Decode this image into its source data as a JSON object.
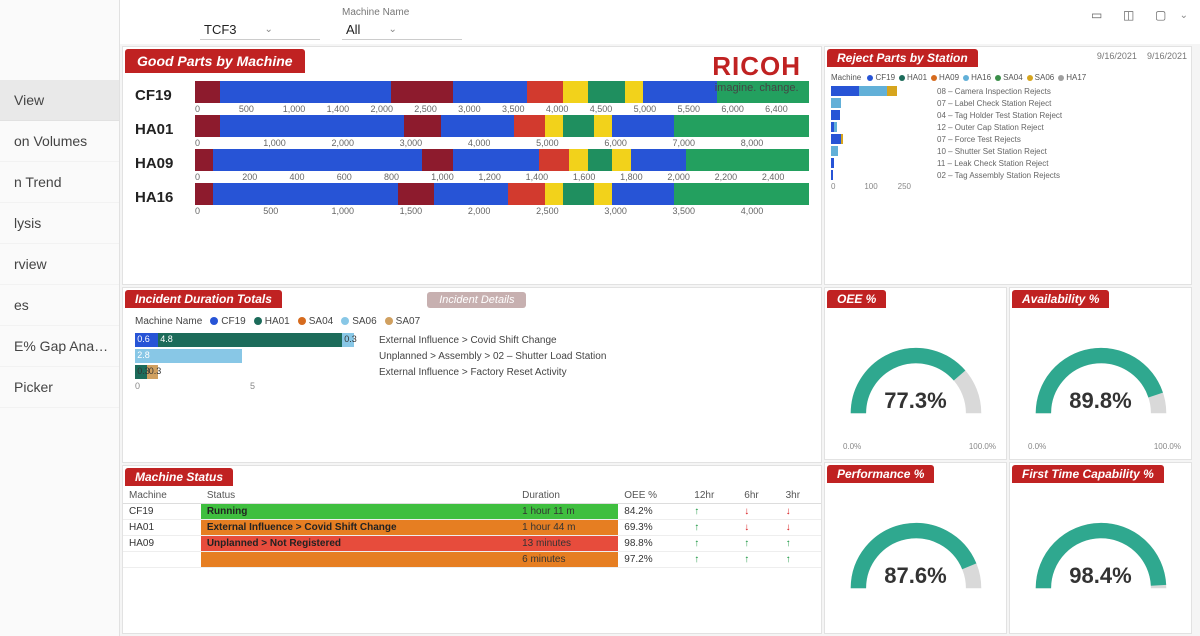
{
  "sidebar": {
    "items": [
      {
        "label": "View",
        "active": true
      },
      {
        "label": "on Volumes"
      },
      {
        "label": "n Trend"
      },
      {
        "label": "lysis"
      },
      {
        "label": "rview"
      },
      {
        "label": "es"
      },
      {
        "label": "E% Gap Analy…"
      },
      {
        "label": "Picker"
      }
    ]
  },
  "filters": {
    "left_label": "",
    "left_value": "TCF3",
    "right_label": "Machine Name",
    "right_value": "All"
  },
  "brand": {
    "name": "RICOH",
    "tagline": "imagine. change.",
    "color": "#c02222"
  },
  "dates": {
    "from": "9/16/2021",
    "to": "9/16/2021"
  },
  "good_parts": {
    "title": "Good Parts by Machine",
    "palette": {
      "a": "#8d1b2d",
      "b": "#2754d6",
      "c": "#d23a2e",
      "d": "#f2d21b",
      "e": "#1f8f5f",
      "f": "#23a05f"
    },
    "machines": [
      {
        "name": "CF19",
        "max": 6400,
        "ticks": [
          "0",
          "500",
          "1,000",
          "1,400",
          "2,000",
          "2,500",
          "3,000",
          "3,500",
          "4,000",
          "4,500",
          "5,000",
          "5,500",
          "6,000",
          "6,400"
        ],
        "segs": [
          [
            "a",
            4
          ],
          [
            "b",
            28
          ],
          [
            "a",
            10
          ],
          [
            "b",
            12
          ],
          [
            "c",
            6
          ],
          [
            "d",
            4
          ],
          [
            "e",
            6
          ],
          [
            "d",
            3
          ],
          [
            "b",
            12
          ],
          [
            "f",
            15
          ]
        ]
      },
      {
        "name": "HA01",
        "max": 8000,
        "ticks": [
          "0",
          "1,000",
          "2,000",
          "3,000",
          "4,000",
          "5,000",
          "6,000",
          "7,000",
          "8,000"
        ],
        "segs": [
          [
            "a",
            4
          ],
          [
            "b",
            30
          ],
          [
            "a",
            6
          ],
          [
            "b",
            12
          ],
          [
            "c",
            5
          ],
          [
            "d",
            3
          ],
          [
            "e",
            5
          ],
          [
            "d",
            3
          ],
          [
            "b",
            10
          ],
          [
            "f",
            22
          ]
        ]
      },
      {
        "name": "HA09",
        "max": 2400,
        "ticks": [
          "0",
          "200",
          "400",
          "600",
          "800",
          "1,000",
          "1,200",
          "1,400",
          "1,600",
          "1,800",
          "2,000",
          "2,200",
          "2,400"
        ],
        "segs": [
          [
            "a",
            3
          ],
          [
            "b",
            34
          ],
          [
            "a",
            5
          ],
          [
            "b",
            14
          ],
          [
            "c",
            5
          ],
          [
            "d",
            3
          ],
          [
            "e",
            4
          ],
          [
            "d",
            3
          ],
          [
            "b",
            9
          ],
          [
            "f",
            20
          ]
        ]
      },
      {
        "name": "HA16",
        "max": 4000,
        "ticks": [
          "0",
          "500",
          "1,000",
          "1,500",
          "2,000",
          "2,500",
          "3,000",
          "3,500",
          "4,000"
        ],
        "segs": [
          [
            "a",
            3
          ],
          [
            "b",
            30
          ],
          [
            "a",
            6
          ],
          [
            "b",
            12
          ],
          [
            "c",
            6
          ],
          [
            "d",
            3
          ],
          [
            "e",
            5
          ],
          [
            "d",
            3
          ],
          [
            "b",
            10
          ],
          [
            "f",
            22
          ]
        ]
      }
    ]
  },
  "reject": {
    "title": "Reject Parts by Station",
    "legend_label": "Machine",
    "legend": [
      {
        "name": "CF19",
        "color": "#2754d6"
      },
      {
        "name": "HA01",
        "color": "#1c6b5a"
      },
      {
        "name": "HA09",
        "color": "#d66b1e"
      },
      {
        "name": "HA16",
        "color": "#62b0d8"
      },
      {
        "name": "SA04",
        "color": "#3b8f4a"
      },
      {
        "name": "SA06",
        "color": "#d6a51e"
      },
      {
        "name": "HA17",
        "color": "#a0a0a0"
      }
    ],
    "rows": [
      {
        "label": "08 – Camera Inspection Rejects",
        "segs": [
          [
            "#2754d6",
            70
          ],
          [
            "#62b0d8",
            70
          ],
          [
            "#d6a51e",
            25
          ]
        ]
      },
      {
        "label": "07 – Label Check Station Reject",
        "segs": [
          [
            "#62b0d8",
            26
          ]
        ]
      },
      {
        "label": "04 – Tag Holder Test Station Reject",
        "segs": [
          [
            "#2754d6",
            22
          ]
        ]
      },
      {
        "label": "12 – Outer Cap Station Reject",
        "segs": [
          [
            "#2754d6",
            8
          ],
          [
            "#62b0d8",
            7
          ]
        ]
      },
      {
        "label": "07 – Force Test Rejects",
        "segs": [
          [
            "#2754d6",
            24
          ],
          [
            "#d6a51e",
            7
          ]
        ]
      },
      {
        "label": "10 – Shutter Set Station Reject",
        "segs": [
          [
            "#62b0d8",
            18
          ]
        ]
      },
      {
        "label": "11 – Leak Check Station Reject",
        "segs": [
          [
            "#2754d6",
            8
          ]
        ]
      },
      {
        "label": "02 – Tag Assembly Station Rejects",
        "segs": [
          [
            "#2754d6",
            6
          ]
        ]
      }
    ],
    "axis_max": 250,
    "axis_ticks": [
      "0",
      "100",
      "250"
    ]
  },
  "incident": {
    "title": "Incident Duration Totals",
    "title2": "Incident Details",
    "legend_label": "Machine Name",
    "legend": [
      {
        "name": "CF19",
        "color": "#2754d6"
      },
      {
        "name": "HA01",
        "color": "#1c6b5a"
      },
      {
        "name": "SA04",
        "color": "#d66b1e"
      },
      {
        "name": "SA06",
        "color": "#88c7e6"
      },
      {
        "name": "SA07",
        "color": "#d0a060"
      }
    ],
    "rows": [
      {
        "label": "External Influence > Covid Shift Change",
        "segs": [
          {
            "c": "#2754d6",
            "v": 0.6
          },
          {
            "c": "#1c6b5a",
            "v": 4.8
          },
          {
            "c": "#88c7e6",
            "v": 0.3
          }
        ]
      },
      {
        "label": "Unplanned > Assembly > 02 – Shutter Load Station",
        "segs": [
          {
            "c": "#88c7e6",
            "v": 2.8
          }
        ]
      },
      {
        "label": "External Influence > Factory Reset Activity",
        "segs": [
          {
            "c": "#1c6b5a",
            "v": 0.3
          },
          {
            "c": "#d0a060",
            "v": 0.3
          }
        ]
      }
    ],
    "axis_ticks": [
      "0",
      "5"
    ]
  },
  "gauges": {
    "list": [
      {
        "title": "OEE %",
        "value": "77.3%",
        "pct": 77.3,
        "color": "#2fa88f",
        "min": "0.0%",
        "max": "100.0%"
      },
      {
        "title": "Availability %",
        "value": "89.8%",
        "pct": 89.8,
        "color": "#2fa88f",
        "min": "0.0%",
        "max": "100.0%"
      },
      {
        "title": "Performance %",
        "value": "87.6%",
        "pct": 87.6,
        "color": "#2fa88f",
        "min": "",
        "max": ""
      },
      {
        "title": "First Time Capability %",
        "value": "98.4%",
        "pct": 98.4,
        "color": "#2fa88f",
        "min": "",
        "max": ""
      }
    ]
  },
  "status": {
    "title": "Machine Status",
    "columns": [
      "Machine",
      "Status",
      "Duration",
      "OEE %",
      "12hr",
      "6hr",
      "3hr"
    ],
    "rows": [
      {
        "machine": "CF19",
        "status": "Running",
        "status_color": "#3fbf3f",
        "duration": "1 hour 11 m",
        "oee": "84.2%",
        "t12": "up",
        "t6": "dn",
        "t3": "dn"
      },
      {
        "machine": "HA01",
        "status": "External Influence > Covid Shift Change",
        "status_color": "#e67e22",
        "duration": "1 hour 44 m",
        "oee": "69.3%",
        "t12": "up",
        "t6": "dn",
        "t3": "dn"
      },
      {
        "machine": "HA09",
        "status": "Unplanned > Not Registered",
        "status_color": "#e74c3c",
        "duration": "13 minutes",
        "oee": "98.8%",
        "t12": "up",
        "t6": "up",
        "t3": "up"
      },
      {
        "machine": "",
        "status": "",
        "status_color": "#e67e22",
        "duration": "6 minutes",
        "oee": "97.2%",
        "t12": "up",
        "t6": "up",
        "t3": "up"
      }
    ]
  },
  "toolbar": {
    "icons": [
      "filter",
      "refresh",
      "expand",
      "more"
    ]
  }
}
